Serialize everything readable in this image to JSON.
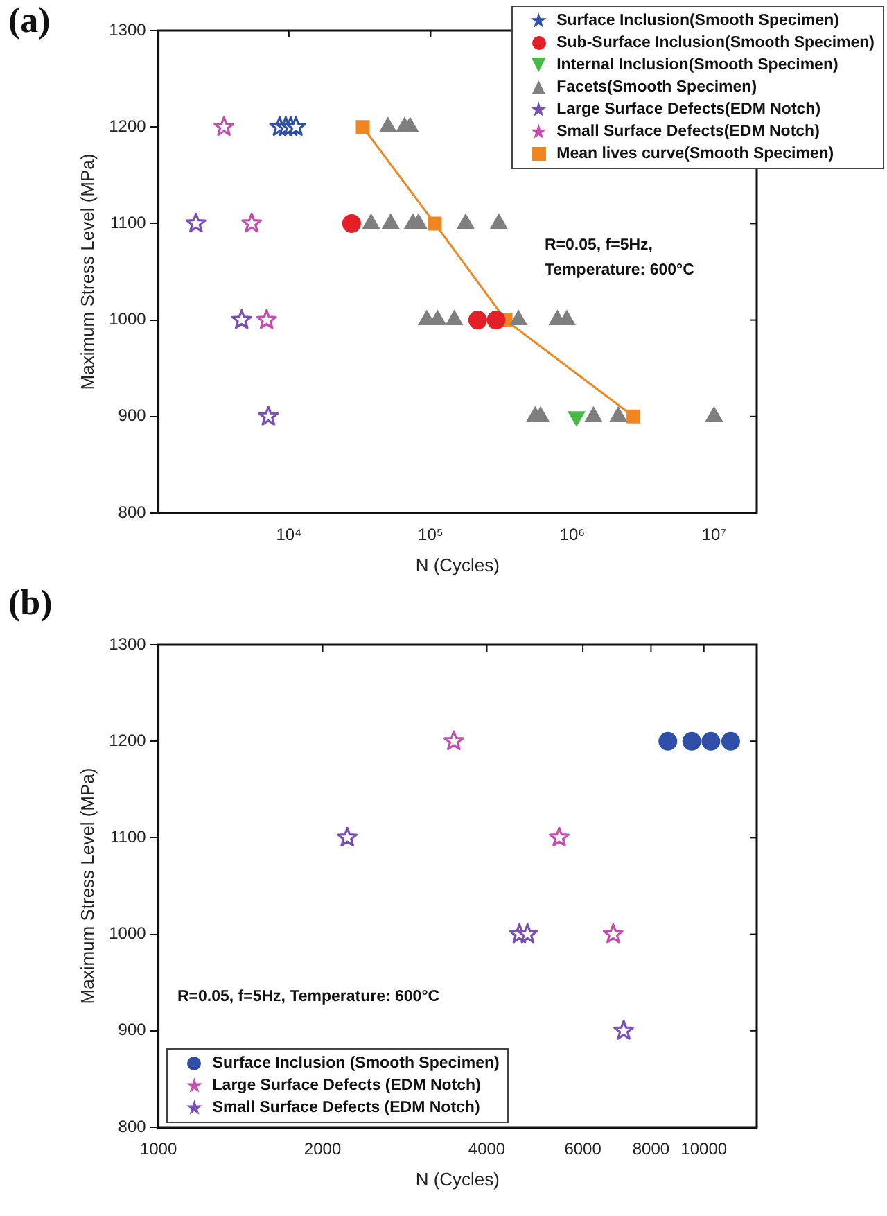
{
  "chart_data": [
    {
      "type": "scatter",
      "title": "(a)",
      "xlabel": "N (Cycles)",
      "ylabel": "Maximum Stress Level (MPa)",
      "log": "x",
      "grid": false,
      "legend": "top right",
      "xlim": [
        1200,
        20000000
      ],
      "xticks": [
        {
          "value": 10000,
          "label": "10⁴"
        },
        {
          "value": 100000,
          "label": "10⁵"
        },
        {
          "value": 1000000,
          "label": "10⁶"
        },
        {
          "value": 10000000,
          "label": "10⁷"
        }
      ],
      "ylim": [
        800,
        1300
      ],
      "yticks": [
        800,
        900,
        1000,
        1100,
        1200,
        1300
      ],
      "annotations": [
        "R=0.05, f=5Hz, Temperature: 600°C"
      ],
      "series": [
        {
          "name": "Surface Inclusion(Smooth Specimen)",
          "color": "#2f4fa8",
          "marker": "star",
          "x": [
            8600,
            9500,
            10300,
            11200
          ],
          "values": [
            1200,
            1200,
            1200,
            1200
          ]
        },
        {
          "name": "Sub-Surface Inclusion(Smooth Specimen)",
          "color": "#e3202a",
          "marker": "circle",
          "x": [
            27700,
            215000,
            290000
          ],
          "values": [
            1100,
            1000,
            1000
          ]
        },
        {
          "name": "Internal Inclusion(Smooth Specimen)",
          "color": "#4db848",
          "marker": "triangle-down",
          "x": [
            1070000
          ],
          "values": [
            900
          ]
        },
        {
          "name": "Facets(Smooth Specimen)",
          "color": "#7f7f7f",
          "marker": "triangle",
          "x": [
            50000,
            65500,
            71600,
            38000,
            52200,
            75000,
            82000,
            176600,
            303000,
            94000,
            112000,
            147000,
            417000,
            784000,
            914000,
            546000,
            597000,
            1410000,
            2110000,
            10000000
          ],
          "values": [
            1200,
            1200,
            1200,
            1100,
            1100,
            1100,
            1100,
            1100,
            1100,
            1000,
            1000,
            1000,
            1000,
            1000,
            1000,
            900,
            900,
            900,
            900,
            900
          ]
        },
        {
          "name": "Large Surface Defects(EDM Notch)",
          "color": "#7a4fb3",
          "marker": "star",
          "x": [
            2210,
            4640,
            7170
          ],
          "values": [
            1100,
            1000,
            900
          ]
        },
        {
          "name": "Small Surface Defects(EDM Notch)",
          "color": "#c24fb0",
          "marker": "star",
          "x": [
            3480,
            5460,
            6960
          ],
          "values": [
            1200,
            1100,
            1000
          ]
        },
        {
          "name": "Mean lives curve(Smooth Specimen)",
          "type": "line",
          "color": "#f0861f",
          "marker": "square",
          "line_style": "solid",
          "x": [
            33200,
            107000,
            338000,
            2700000
          ],
          "values": [
            1200,
            1100,
            1000,
            900
          ]
        }
      ]
    },
    {
      "type": "scatter",
      "title": "(b)",
      "xlabel": "N (Cycles)",
      "ylabel": "Maximum Stress Level (MPa)",
      "log": "x",
      "grid": false,
      "legend": "bottom left",
      "xlim": [
        1000,
        12500
      ],
      "xticks": [
        1000,
        2000,
        4000,
        6000,
        8000,
        10000
      ],
      "ylim": [
        800,
        1300
      ],
      "yticks": [
        800,
        900,
        1000,
        1100,
        1200,
        1300
      ],
      "annotations": [
        "R=0.05, f=5Hz, Temperature: 600°C"
      ],
      "series": [
        {
          "name": "Surface Inclusion (Smooth Specimen)",
          "color": "#2f4fa8",
          "marker": "circle",
          "x": [
            8590,
            9500,
            10300,
            11200
          ],
          "values": [
            1200,
            1200,
            1200,
            1200
          ]
        },
        {
          "name": "Large Surface Defects (EDM Notch)",
          "color": "#c24fb0",
          "marker": "star",
          "x": [
            3480,
            5430,
            6820
          ],
          "values": [
            1200,
            1100,
            1000
          ]
        },
        {
          "name": "Small Surface Defects (EDM Notch)",
          "color": "#7a4fb3",
          "marker": "star",
          "x": [
            2220,
            4590,
            4750,
            7130
          ],
          "values": [
            1100,
            1000,
            1000,
            900
          ]
        }
      ]
    }
  ]
}
